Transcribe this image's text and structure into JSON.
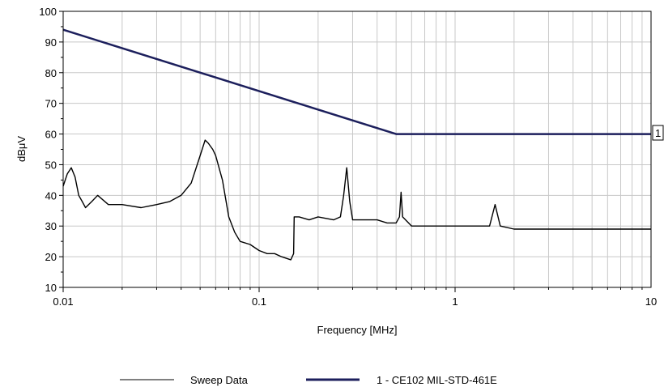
{
  "chart_data": {
    "type": "line",
    "xlabel": "Frequency [MHz]",
    "ylabel": "dBμV",
    "xscale": "log",
    "xlim": [
      0.01,
      10
    ],
    "ylim": [
      10,
      100
    ],
    "x_ticks": [
      "0.01",
      "0.1",
      "1",
      "10"
    ],
    "y_ticks": [
      "10",
      "20",
      "30",
      "40",
      "50",
      "60",
      "70",
      "80",
      "90",
      "100"
    ],
    "grid": true,
    "legend_position": "bottom",
    "limit_marker_label": "1",
    "series": [
      {
        "name": "Sweep Data",
        "color": "#000000",
        "x": [
          0.01,
          0.0105,
          0.011,
          0.0115,
          0.012,
          0.0125,
          0.013,
          0.014,
          0.015,
          0.017,
          0.02,
          0.025,
          0.03,
          0.035,
          0.04,
          0.045,
          0.05,
          0.053,
          0.055,
          0.058,
          0.06,
          0.065,
          0.07,
          0.075,
          0.08,
          0.09,
          0.1,
          0.11,
          0.12,
          0.13,
          0.145,
          0.15,
          0.151,
          0.16,
          0.18,
          0.2,
          0.24,
          0.26,
          0.27,
          0.28,
          0.29,
          0.3,
          0.35,
          0.4,
          0.45,
          0.5,
          0.52,
          0.53,
          0.54,
          0.6,
          0.8,
          1.0,
          1.5,
          1.6,
          1.7,
          2,
          3,
          4,
          5,
          6,
          7,
          8,
          9,
          10
        ],
        "y": [
          43,
          47,
          49,
          46,
          40,
          38,
          36,
          38,
          40,
          37,
          37,
          36,
          37,
          38,
          40,
          44,
          53,
          58,
          57,
          55,
          53,
          45,
          33,
          28,
          25,
          24,
          22,
          21,
          21,
          20,
          19,
          21,
          33,
          33,
          32,
          33,
          32,
          33,
          40,
          49,
          38,
          32,
          32,
          32,
          31,
          31,
          33,
          41,
          33,
          30,
          30,
          30,
          30,
          37,
          30,
          29,
          29,
          29,
          29,
          29,
          29,
          29,
          29,
          29
        ]
      },
      {
        "name": "1 - CE102  MIL-STD-461E",
        "color": "#1c1f5c",
        "x": [
          0.01,
          0.5,
          10
        ],
        "y": [
          94,
          60,
          60
        ]
      }
    ]
  }
}
